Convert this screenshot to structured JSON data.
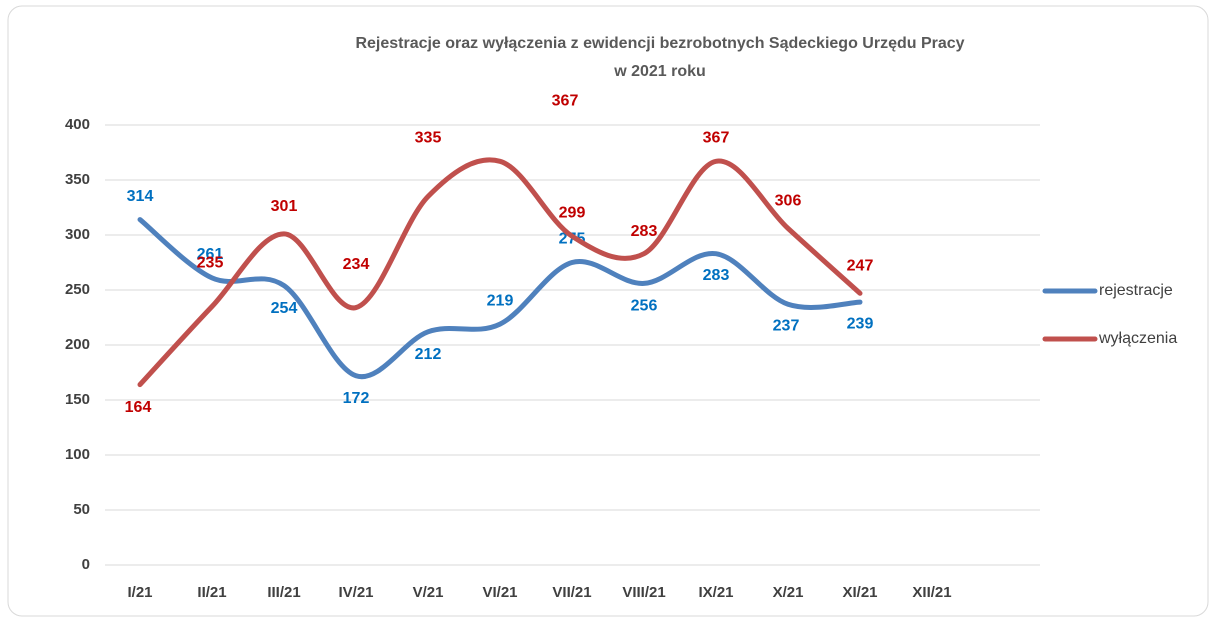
{
  "chart_data": {
    "type": "line",
    "title": [
      "Rejestracje oraz wyłączenia z ewidencji bezrobotnych Sądeckiego Urzędu Pracy",
      "w 2021 roku"
    ],
    "categories": [
      "I/21",
      "II/21",
      "III/21",
      "IV/21",
      "V/21",
      "VI/21",
      "VII/21",
      "VIII/21",
      "IX/21",
      "X/21",
      "XI/21",
      "XII/21"
    ],
    "series": [
      {
        "name": "rejestracje",
        "color": "#4f81bd",
        "label_color": "#0070c0",
        "values": [
          314,
          261,
          254,
          172,
          212,
          219,
          275,
          256,
          283,
          237,
          239,
          null
        ]
      },
      {
        "name": "wyłączenia",
        "color": "#c0504d",
        "label_color": "#c00000",
        "values": [
          164,
          235,
          301,
          234,
          335,
          367,
          299,
          283,
          367,
          306,
          247,
          null
        ]
      }
    ],
    "ylim": [
      0,
      400
    ],
    "yticks": [
      0,
      50,
      100,
      150,
      200,
      250,
      300,
      350,
      400
    ],
    "grid": true,
    "smooth": true,
    "legend": "right"
  }
}
